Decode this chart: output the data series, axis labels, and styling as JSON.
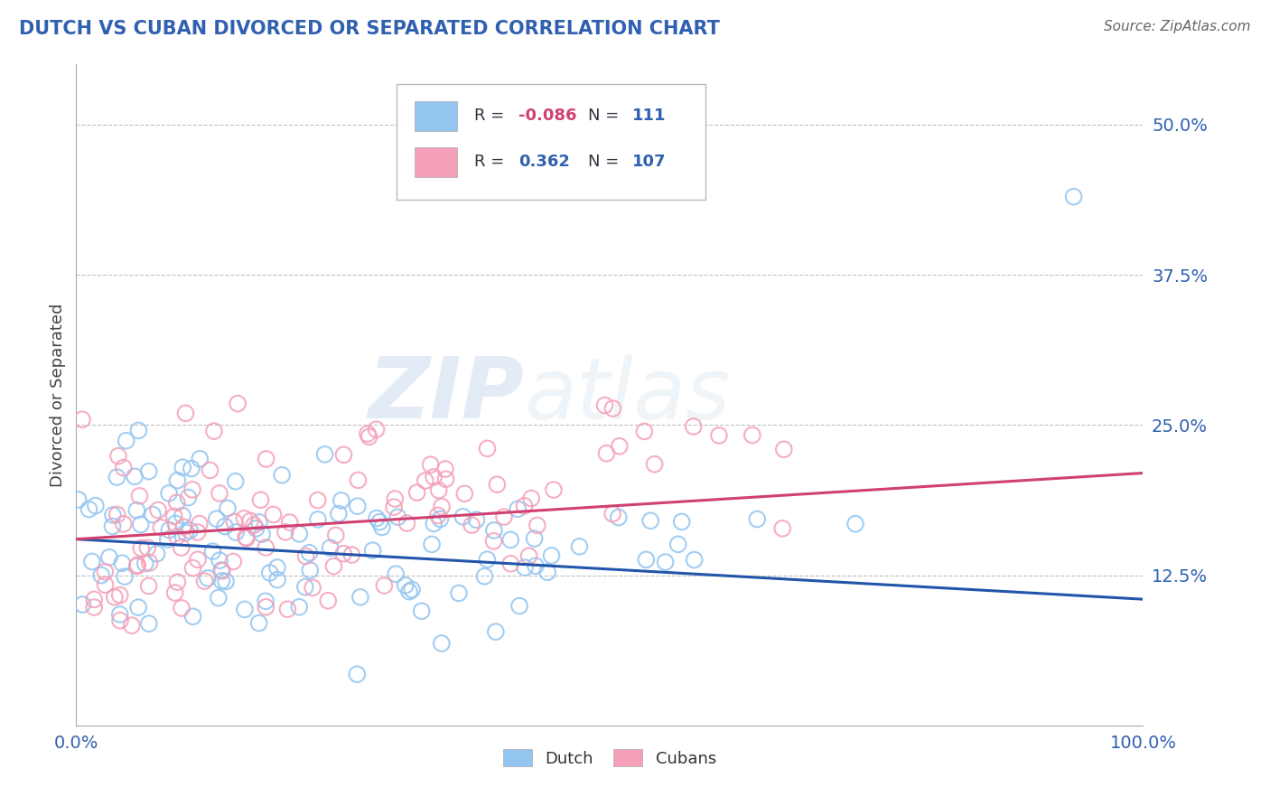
{
  "title": "DUTCH VS CUBAN DIVORCED OR SEPARATED CORRELATION CHART",
  "source": "Source: ZipAtlas.com",
  "ylabel": "Divorced or Separated",
  "xlim": [
    0.0,
    1.0
  ],
  "ylim": [
    0.0,
    0.55
  ],
  "yticks": [
    0.0,
    0.125,
    0.25,
    0.375,
    0.5
  ],
  "ytick_labels": [
    "",
    "12.5%",
    "25.0%",
    "37.5%",
    "50.0%"
  ],
  "xtick_labels": [
    "0.0%",
    "",
    "",
    "",
    "",
    "",
    "",
    "",
    "",
    "",
    "100.0%"
  ],
  "dutch_color": "#92C5F0",
  "cuban_color": "#F4A0B8",
  "dutch_line_color": "#2255AA",
  "cuban_line_color": "#D04070",
  "dutch_R": -0.086,
  "dutch_N": 111,
  "cuban_R": 0.362,
  "cuban_N": 107,
  "background_color": "#ffffff",
  "grid_color": "#bbbbbb",
  "title_color": "#3060B0",
  "source_color": "#666666",
  "watermark_color": "#C8D8F0",
  "label_color": "#3060B0",
  "legend_R_neg_color": "#D04070",
  "legend_R_pos_color": "#3060B0",
  "legend_N_color": "#3060B0"
}
